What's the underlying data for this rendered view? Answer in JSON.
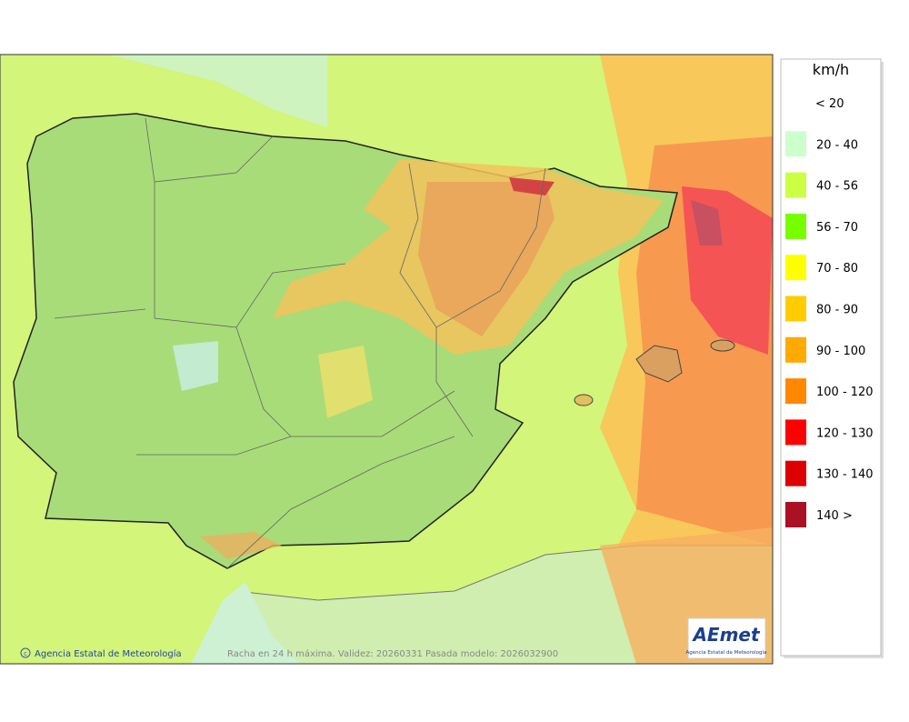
{
  "legend": {
    "title": "km/h",
    "items": [
      {
        "label": "< 20"
      },
      {
        "label": "20 - 40",
        "color": "#ccffcc"
      },
      {
        "label": "40 - 56",
        "color": "#ccff44"
      },
      {
        "label": "56 - 70",
        "color": "#77ff00"
      },
      {
        "label": "70 - 80",
        "color": "#ffff00"
      },
      {
        "label": "80 - 90",
        "color": "#ffcc00"
      },
      {
        "label": "90 - 100",
        "color": "#ffaa00"
      },
      {
        "label": "100 - 120",
        "color": "#ff8800"
      },
      {
        "label": "120 - 130",
        "color": "#ff0000"
      },
      {
        "label": "130 - 140",
        "color": "#dd0000"
      },
      {
        "label": "140 >",
        "color": "#aa1122"
      }
    ]
  },
  "footer": {
    "credit": "Agencia Estatal de Meteorología",
    "caption": "Racha en 24 h máxima. Validez: 20260331 Pasada modelo: 2026032900"
  },
  "logo": {
    "name": "AEmet",
    "subtitle": "Agencia Estatal de Meteorología"
  }
}
